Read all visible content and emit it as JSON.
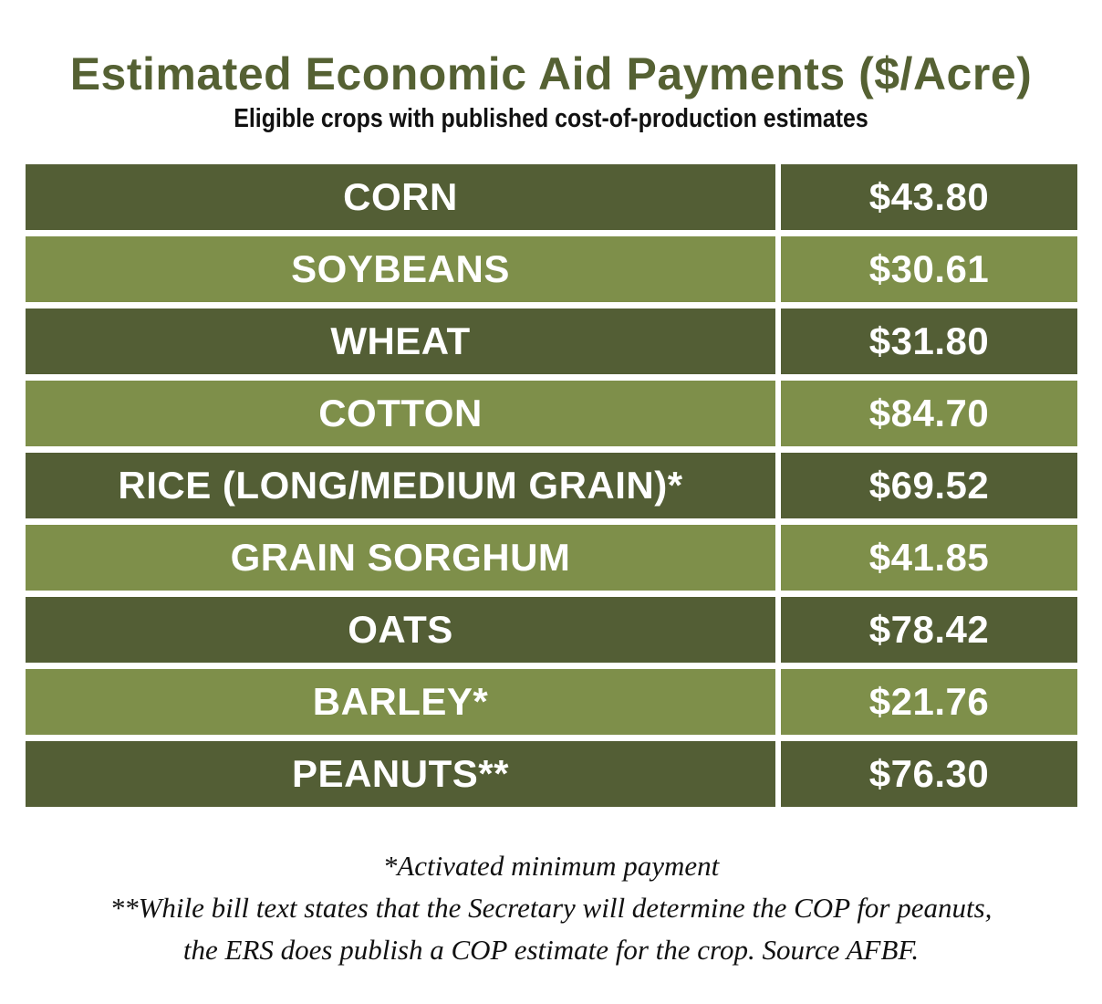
{
  "header": {
    "title": "Estimated Economic Aid Payments ($/Acre)",
    "subtitle": "Eligible crops with published cost-of-production estimates"
  },
  "colors": {
    "title": "#556133",
    "row_dark": "#535e35",
    "row_light": "#7e8f4a",
    "text_on_rows": "#ffffff"
  },
  "chart_data": {
    "type": "table",
    "title": "Estimated Economic Aid Payments ($/Acre)",
    "subtitle": "Eligible crops with published cost-of-production estimates",
    "rows": [
      {
        "crop": "CORN",
        "value": "$43.80"
      },
      {
        "crop": "SOYBEANS",
        "value": "$30.61"
      },
      {
        "crop": "WHEAT",
        "value": "$31.80"
      },
      {
        "crop": "COTTON",
        "value": "$84.70"
      },
      {
        "crop": "RICE (LONG/MEDIUM GRAIN)*",
        "value": "$69.52"
      },
      {
        "crop": "GRAIN SORGHUM",
        "value": "$41.85"
      },
      {
        "crop": "OATS",
        "value": "$78.42"
      },
      {
        "crop": "BARLEY*",
        "value": "$21.76"
      },
      {
        "crop": "PEANUTS**",
        "value": "$76.30"
      }
    ]
  },
  "footnotes": {
    "line1": "*Activated minimum payment",
    "line2": "**While bill text states that the Secretary will determine the COP for peanuts,",
    "line3": "the ERS does publish a COP estimate for the crop. Source AFBF."
  }
}
